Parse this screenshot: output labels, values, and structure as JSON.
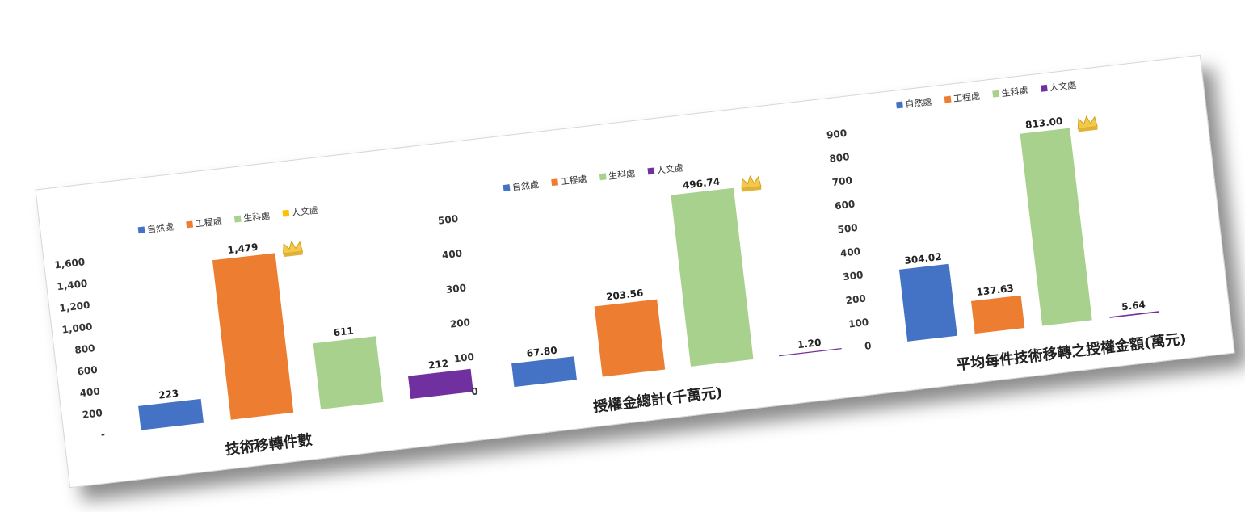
{
  "colors": {
    "自然處": "#4472c4",
    "工程處": "#ed7d31",
    "生科處": "#a9d18e",
    "人文處": "#7030a0",
    "legend_人文處_chart1": "#ffc000"
  },
  "chart_data": [
    {
      "type": "bar",
      "title": "技術移轉件數",
      "categories": [
        "自然處",
        "工程處",
        "生科處",
        "人文處"
      ],
      "legend": [
        "自然處",
        "工程處",
        "生科處",
        "人文處"
      ],
      "values": [
        223,
        1479,
        611,
        212
      ],
      "labels": [
        "223",
        "1,479",
        "611",
        "212"
      ],
      "ylim": [
        0,
        1600
      ],
      "yticks": [
        "-",
        "200",
        "400",
        "600",
        "800",
        "1,000",
        "1,200",
        "1,400",
        "1,600"
      ],
      "crown_on": "工程處"
    },
    {
      "type": "bar",
      "title": "授權金總計(千萬元)",
      "categories": [
        "自然處",
        "工程處",
        "生科處",
        "人文處"
      ],
      "legend": [
        "自然處",
        "工程處",
        "生科處",
        "人文處"
      ],
      "values": [
        67.8,
        203.56,
        496.74,
        1.2
      ],
      "labels": [
        "67.80",
        "203.56",
        "496.74",
        "1.20"
      ],
      "ylim": [
        0,
        500
      ],
      "yticks": [
        "0",
        "100",
        "200",
        "300",
        "400",
        "500"
      ],
      "crown_on": "生科處"
    },
    {
      "type": "bar",
      "title": "平均每件技術移轉之授權金額(萬元)",
      "categories": [
        "自然處",
        "工程處",
        "生科處",
        "人文處"
      ],
      "legend": [
        "自然處",
        "工程處",
        "生科處",
        "人文處"
      ],
      "values": [
        304.02,
        137.63,
        813.0,
        5.64
      ],
      "labels": [
        "304.02",
        "137.63",
        "813.00",
        "5.64"
      ],
      "ylim": [
        0,
        900
      ],
      "yticks": [
        "0",
        "100",
        "200",
        "300",
        "400",
        "500",
        "600",
        "700",
        "800",
        "900"
      ],
      "crown_on": "生科處"
    }
  ]
}
